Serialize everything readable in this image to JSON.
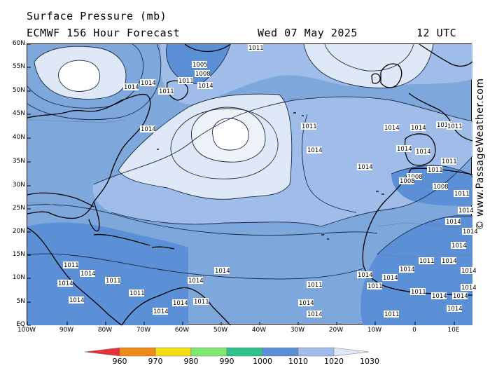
{
  "header": {
    "title": "Surface Pressure (mb)",
    "subtitle": "ECMWF 156 Hour Forecast",
    "date": "Wed 07 May 2025",
    "time": "12 UTC"
  },
  "credit": "© www.PassageWeather.com",
  "axes": {
    "lat_labels": [
      "60N",
      "55N",
      "50N",
      "45N",
      "40N",
      "35N",
      "30N",
      "25N",
      "20N",
      "15N",
      "10N",
      "5N",
      "EQ"
    ],
    "lon_labels": [
      "100W",
      "90W",
      "80W",
      "70W",
      "60W",
      "50W",
      "40W",
      "30W",
      "20W",
      "10W",
      "0",
      "10E"
    ]
  },
  "legend": {
    "labels": [
      "960",
      "970",
      "980",
      "990",
      "1000",
      "1010",
      "1020",
      "1030"
    ],
    "colors": [
      "#e8303a",
      "#f08a1a",
      "#f5dc10",
      "#7ee870",
      "#2ec08a",
      "#5b8fd6",
      "#9fbde8",
      "#dfe8f6"
    ]
  },
  "map": {
    "colors": {
      "low": "#5b8fd6",
      "mid": "#7ea7dc",
      "high": "#9fbde8",
      "very_high": "#dfe8f6",
      "center": "#ffffff"
    },
    "pressure_labels": [
      {
        "text": "1011"
      },
      {
        "text": "1005"
      },
      {
        "text": "1008"
      },
      {
        "text": "1011"
      },
      {
        "text": "1014"
      },
      {
        "text": "1014"
      },
      {
        "text": "1011"
      },
      {
        "text": "1014"
      },
      {
        "text": "1014"
      },
      {
        "text": "1011"
      },
      {
        "text": "1014"
      },
      {
        "text": "1014"
      },
      {
        "text": "1014"
      },
      {
        "text": "1014"
      },
      {
        "text": "1014"
      },
      {
        "text": "1014"
      },
      {
        "text": "1014"
      },
      {
        "text": "1011"
      },
      {
        "text": "1008"
      },
      {
        "text": "1011"
      },
      {
        "text": "1011"
      },
      {
        "text": "1008"
      },
      {
        "text": "1008"
      },
      {
        "text": "1011"
      },
      {
        "text": "1014"
      },
      {
        "text": "1014"
      },
      {
        "text": "1014"
      },
      {
        "text": "1014"
      },
      {
        "text": "1014"
      },
      {
        "text": "1014"
      },
      {
        "text": "1011"
      },
      {
        "text": "1014"
      },
      {
        "text": "1014"
      },
      {
        "text": "1014"
      },
      {
        "text": "1011"
      },
      {
        "text": "1014"
      },
      {
        "text": "1014"
      },
      {
        "text": "1014"
      },
      {
        "text": "1014"
      },
      {
        "text": "1011"
      },
      {
        "text": "1011"
      },
      {
        "text": "1014"
      },
      {
        "text": "1014"
      },
      {
        "text": "1011"
      },
      {
        "text": "1014"
      },
      {
        "text": "1011"
      },
      {
        "text": "1014"
      },
      {
        "text": "1014"
      },
      {
        "text": "1014"
      },
      {
        "text": "1011"
      },
      {
        "text": "1011"
      },
      {
        "text": "1014"
      },
      {
        "text": "1011"
      },
      {
        "text": "1014"
      },
      {
        "text": "1014"
      }
    ]
  }
}
